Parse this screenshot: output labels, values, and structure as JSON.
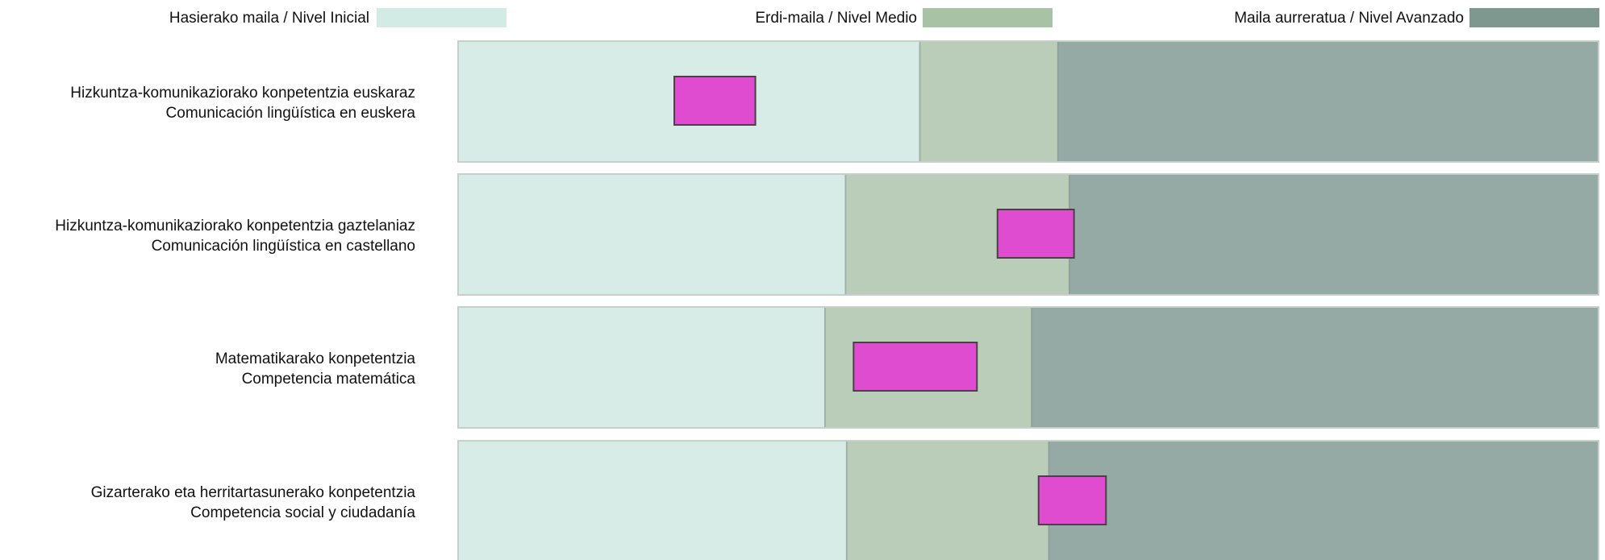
{
  "chart_data": {
    "type": "bar",
    "legend": {
      "placement": "top",
      "entries": [
        {
          "label": "Hasierako maila / Nivel Inicial",
          "color": "#d3ebe5"
        },
        {
          "label": "Erdi-maila / Nivel Medio",
          "color": "#a8c2a6"
        },
        {
          "label": "Maila aurreratua / Nivel Avanzado",
          "color": "#7e9890"
        }
      ]
    },
    "band_colors": {
      "inicial": "#d8ece7",
      "medio": "#bacdb8",
      "avanzado": "#95aaa4"
    },
    "marker_color": "#e04ccf",
    "scale": [
      0,
      100
    ],
    "rows": [
      {
        "label_eu": "Hizkuntza-komunikaziorako konpetentzia euskaraz",
        "label_es": "Comunicación lingüística en euskera",
        "medio_start": 40.5,
        "avanzado_start": 52.6,
        "marker_low": 19.0,
        "marker_high": 26.1
      },
      {
        "label_eu": "Hizkuntza-komunikaziorako konpetentzia gaztelaniaz",
        "label_es": "Comunicación lingüística en castellano",
        "medio_start": 34.0,
        "avanzado_start": 53.6,
        "marker_low": 47.3,
        "marker_high": 54.0
      },
      {
        "label_eu": "Matematikarako konpetentzia",
        "label_es": "Competencia matemática",
        "medio_start": 32.2,
        "avanzado_start": 50.3,
        "marker_low": 34.7,
        "marker_high": 45.5
      },
      {
        "label_eu": "Gizarterako eta herritartasunerako konpetentzia",
        "label_es": "Competencia social y ciudadanía",
        "medio_start": 34.1,
        "avanzado_start": 51.8,
        "marker_low": 50.9,
        "marker_high": 56.8
      }
    ]
  }
}
